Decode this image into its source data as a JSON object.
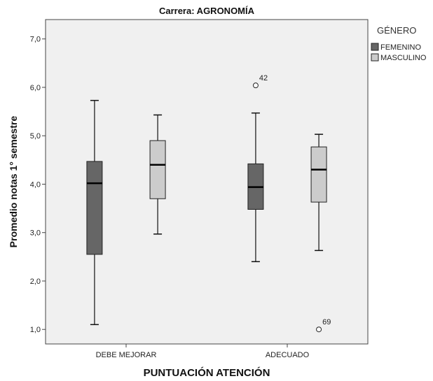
{
  "chart_data": {
    "type": "boxplot",
    "title": "Carrera: AGRONOMÍA",
    "xlabel": "PUNTUACIÓN ATENCIÓN",
    "ylabel": "Promedio notas 1° semestre",
    "categories": [
      "DEBE MEJORAR",
      "ADECUADO"
    ],
    "ylim": [
      0.7,
      7.4
    ],
    "yticks": [
      "1,0",
      "2,0",
      "3,0",
      "4,0",
      "5,0",
      "6,0",
      "7,0"
    ],
    "ytick_values": [
      1,
      2,
      3,
      4,
      5,
      6,
      7
    ],
    "grid": false,
    "legend": {
      "title": "GÉNERO",
      "placement": "right",
      "entries": [
        "FEMENINO",
        "MASCULINO"
      ]
    },
    "colors": {
      "FEMENINO": "#666666",
      "MASCULINO": "#cccccc",
      "plot_background": "#f0f0f0"
    },
    "series": [
      {
        "name": "FEMENINO",
        "boxes": [
          {
            "category": "DEBE MEJORAR",
            "min": 1.1,
            "q1": 2.55,
            "median": 4.02,
            "q3": 4.47,
            "max": 5.73,
            "outliers": []
          },
          {
            "category": "ADECUADO",
            "min": 2.4,
            "q1": 3.48,
            "median": 3.94,
            "q3": 4.42,
            "max": 5.47,
            "outliers": [
              {
                "value": 6.04,
                "label": "42"
              }
            ]
          }
        ]
      },
      {
        "name": "MASCULINO",
        "boxes": [
          {
            "category": "DEBE MEJORAR",
            "min": 2.97,
            "q1": 3.7,
            "median": 4.4,
            "q3": 4.9,
            "max": 5.43,
            "outliers": []
          },
          {
            "category": "ADECUADO",
            "min": 2.63,
            "q1": 3.63,
            "median": 4.3,
            "q3": 4.77,
            "max": 5.03,
            "outliers": [
              {
                "value": 1.0,
                "label": "69"
              }
            ]
          }
        ]
      }
    ]
  }
}
